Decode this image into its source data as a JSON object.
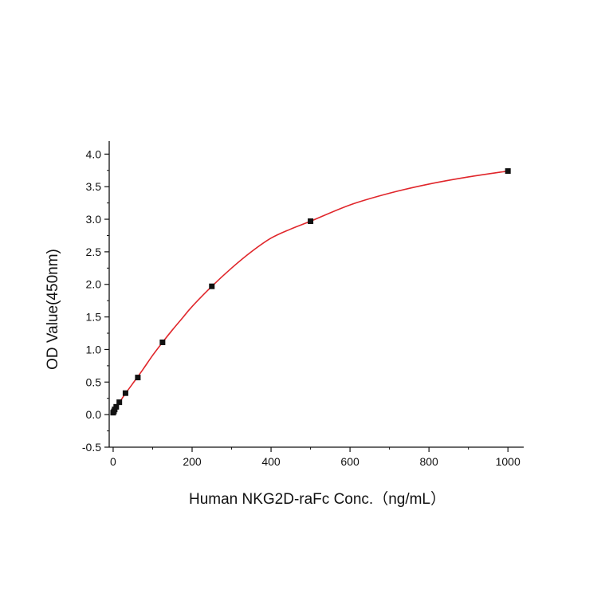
{
  "chart_data": {
    "type": "scatter",
    "title": "",
    "xlabel": "Human NKG2D-raFc Conc.（ng/mL）",
    "ylabel": "OD Value(450nm)",
    "xlim": [
      -10,
      1040
    ],
    "ylim": [
      -0.5,
      4.2
    ],
    "x_ticks": [
      0,
      200,
      400,
      600,
      800,
      1000
    ],
    "x_tick_labels": [
      "0",
      "200",
      "400",
      "600",
      "800",
      "1000"
    ],
    "y_ticks": [
      -0.5,
      0.0,
      0.5,
      1.0,
      1.5,
      2.0,
      2.5,
      3.0,
      3.5,
      4.0
    ],
    "y_tick_labels": [
      "-0.5",
      "0.0",
      "0.5",
      "1.0",
      "1.5",
      "2.0",
      "2.5",
      "3.0",
      "3.5",
      "4.0"
    ],
    "grid": false,
    "legend": "none",
    "series": [
      {
        "x": [
          0,
          1.95,
          3.9,
          7.8,
          15.6,
          31.25,
          62.5,
          125,
          250,
          500,
          1000
        ],
        "y": [
          0.03,
          0.05,
          0.08,
          0.12,
          0.19,
          0.33,
          0.57,
          1.11,
          1.97,
          2.97,
          3.74
        ],
        "marker": "square",
        "marker_color": "#111111"
      }
    ],
    "fit_curve": {
      "kind": "four-parameter logistic",
      "color": "#e0262b",
      "x": [
        0,
        25,
        50,
        75,
        100,
        125,
        150,
        175,
        200,
        250,
        300,
        350,
        400,
        450,
        500,
        600,
        700,
        800,
        900,
        1000
      ],
      "y": [
        0.03,
        0.27,
        0.48,
        0.69,
        0.91,
        1.11,
        1.3,
        1.48,
        1.66,
        1.97,
        2.25,
        2.5,
        2.71,
        2.85,
        2.97,
        3.22,
        3.4,
        3.54,
        3.65,
        3.74
      ]
    }
  }
}
